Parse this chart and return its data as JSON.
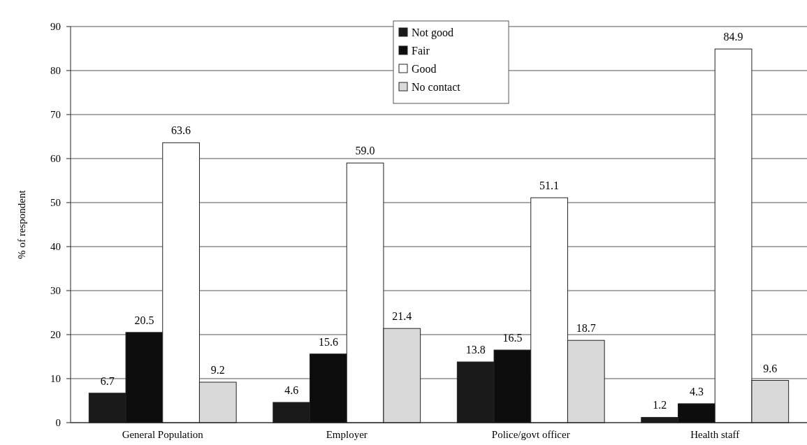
{
  "chart_data": {
    "type": "bar",
    "ylabel": "% of respondent",
    "categories": [
      "General Population",
      "Employer",
      "Police/govt officer",
      "Health staff"
    ],
    "series": [
      {
        "name": "Not good",
        "color": "#1a1a1a",
        "values": [
          6.7,
          4.6,
          13.8,
          1.2
        ]
      },
      {
        "name": "Fair",
        "color": "#0d0d0d",
        "values": [
          20.5,
          15.6,
          16.5,
          4.3
        ]
      },
      {
        "name": "Good",
        "color": "#ffffff",
        "values": [
          63.6,
          59.0,
          51.1,
          84.9
        ],
        "value_labels": [
          "63.6",
          "59.0",
          "51.1",
          "84.9"
        ]
      },
      {
        "name": "No contact",
        "color": "#d9d9d9",
        "values": [
          9.2,
          21.4,
          18.7,
          9.6
        ]
      }
    ],
    "data_labels": true,
    "ylim": [
      0,
      90
    ],
    "yticks": [
      0,
      10,
      20,
      30,
      40,
      50,
      60,
      70,
      80,
      90
    ],
    "grid": "y",
    "legend": "top"
  }
}
